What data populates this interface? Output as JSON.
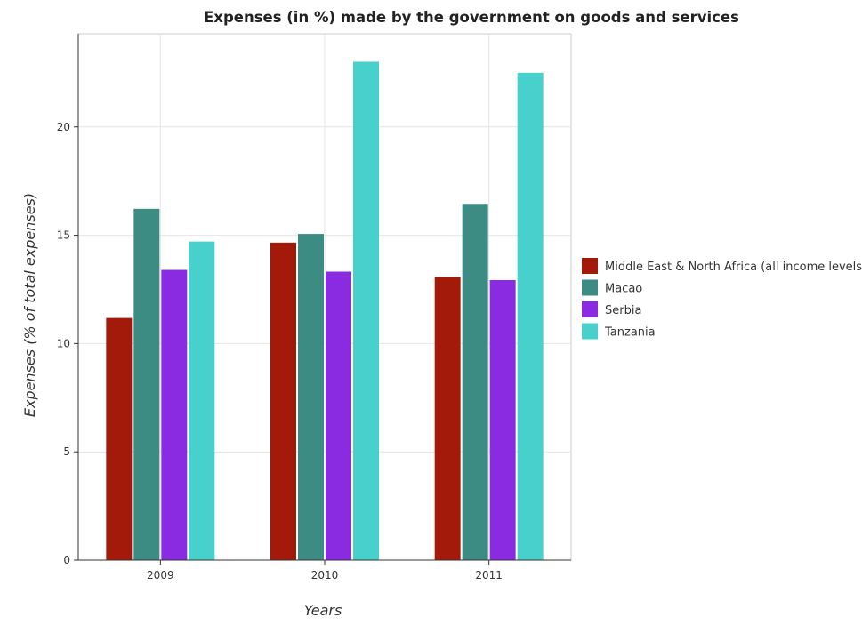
{
  "chart_data": {
    "type": "bar",
    "title": "Expenses (in %) made by the government on goods and services",
    "xlabel": "Years",
    "ylabel": "Expenses (% of total expenses)",
    "categories": [
      "2009",
      "2010",
      "2011"
    ],
    "ylim": [
      0,
      24.3
    ],
    "yticks": [
      0,
      5,
      10,
      15,
      20
    ],
    "grid": true,
    "legend_position": "right",
    "series": [
      {
        "name": "Middle East & North Africa (all income levels)",
        "color": "#a31a0a",
        "values": [
          11.18,
          14.66,
          13.07
        ]
      },
      {
        "name": "Macao",
        "color": "#3d8c84",
        "values": [
          16.22,
          15.06,
          16.45
        ]
      },
      {
        "name": "Serbia",
        "color": "#8a2be2",
        "values": [
          13.4,
          13.32,
          12.93
        ]
      },
      {
        "name": "Tanzania",
        "color": "#48d1cc",
        "values": [
          14.71,
          23.01,
          22.5
        ]
      }
    ]
  }
}
